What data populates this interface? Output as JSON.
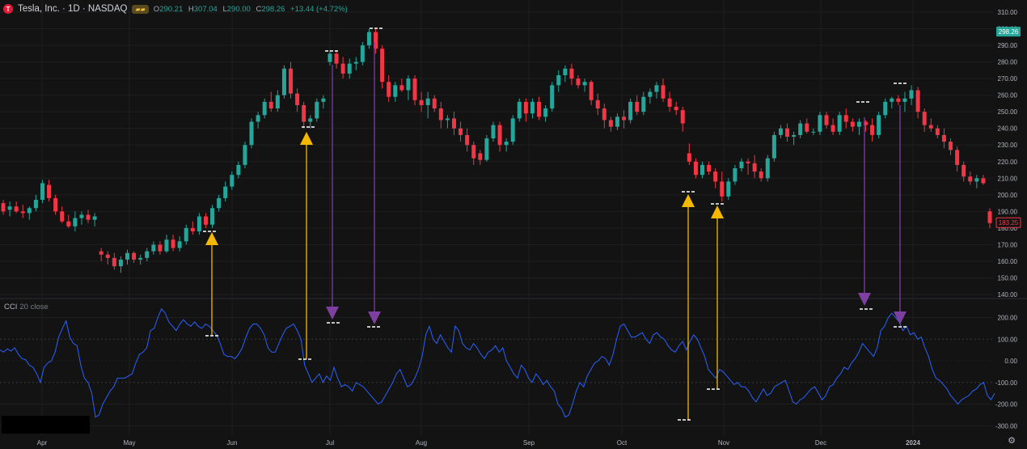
{
  "header": {
    "symbol": "Tesla, Inc. · 1D · NASDAQ",
    "logo_letter": "T",
    "badge": "▰▰",
    "open_key": "O",
    "open": "290.21",
    "high_key": "H",
    "high": "307.04",
    "low_key": "L",
    "low": "290.00",
    "close_key": "C",
    "close": "298.26",
    "change": "+13.44 (+4.72%)"
  },
  "indicator": {
    "name": "CCI",
    "params": "20 close"
  },
  "colors": {
    "background": "#131313",
    "up": "#26a69a",
    "down": "#f23645",
    "cci": "#2962ff",
    "buy_arrow": "#f5b800",
    "sell_arrow": "#7e3fa0",
    "marker": "#ffffff",
    "grid": "#1f1f1f",
    "label_green": "#26a69a",
    "label_red": "#f23645"
  },
  "chart_data": [
    {
      "type": "candlestick",
      "title": "Tesla, Inc. · 1D · NASDAQ",
      "x_tick_labels": [
        "Apr",
        "May",
        "Jun",
        "Jul",
        "Aug",
        "Sep",
        "Oct",
        "Nov",
        "Dec",
        "2024"
      ],
      "y_tick_labels": [
        "310.00",
        "300.00",
        "290.00",
        "280.00",
        "270.00",
        "260.00",
        "250.00",
        "240.00",
        "230.00",
        "220.00",
        "210.00",
        "200.00",
        "190.00",
        "180.00",
        "170.00",
        "160.00",
        "150.00",
        "140.00"
      ],
      "ylim": [
        135,
        313
      ],
      "price_labels": [
        {
          "text": "298.26",
          "value": 298.26,
          "color": "#26a69a"
        },
        {
          "text": "183.25",
          "value": 183.25,
          "color": "#f23645"
        }
      ],
      "candles": [
        [
          195,
          197,
          188,
          190
        ],
        [
          191,
          196,
          187,
          193
        ],
        [
          193,
          196,
          189,
          190
        ],
        [
          190,
          194,
          186,
          189
        ],
        [
          189,
          193,
          185,
          192
        ],
        [
          192,
          200,
          190,
          197
        ],
        [
          197,
          209,
          195,
          207
        ],
        [
          206,
          209,
          196,
          198
        ],
        [
          198,
          200,
          188,
          190
        ],
        [
          190,
          193,
          183,
          184
        ],
        [
          184,
          188,
          180,
          181
        ],
        [
          181,
          190,
          178,
          186
        ],
        [
          186,
          190,
          182,
          188
        ],
        [
          188,
          191,
          183,
          185
        ],
        [
          185,
          189,
          181,
          187
        ],
        [
          166,
          168,
          160,
          164
        ],
        [
          164,
          166,
          158,
          162
        ],
        [
          162,
          165,
          155,
          157
        ],
        [
          157,
          163,
          153,
          161
        ],
        [
          161,
          167,
          158,
          165
        ],
        [
          165,
          166,
          159,
          161
        ],
        [
          161,
          164,
          158,
          162
        ],
        [
          162,
          168,
          160,
          166
        ],
        [
          166,
          172,
          164,
          170
        ],
        [
          170,
          172,
          164,
          166
        ],
        [
          166,
          176,
          165,
          173
        ],
        [
          173,
          176,
          166,
          168
        ],
        [
          168,
          175,
          166,
          172
        ],
        [
          172,
          182,
          170,
          180
        ],
        [
          180,
          184,
          176,
          178
        ],
        [
          178,
          189,
          176,
          187
        ],
        [
          187,
          189,
          180,
          182
        ],
        [
          182,
          194,
          180,
          192
        ],
        [
          192,
          200,
          190,
          198
        ],
        [
          198,
          208,
          196,
          205
        ],
        [
          205,
          214,
          203,
          212
        ],
        [
          212,
          220,
          210,
          218
        ],
        [
          218,
          232,
          216,
          230
        ],
        [
          230,
          246,
          228,
          244
        ],
        [
          244,
          250,
          240,
          248
        ],
        [
          248,
          258,
          246,
          256
        ],
        [
          256,
          262,
          250,
          252
        ],
        [
          252,
          263,
          250,
          260
        ],
        [
          260,
          278,
          258,
          276
        ],
        [
          276,
          280,
          258,
          261
        ],
        [
          261,
          264,
          250,
          254
        ],
        [
          254,
          256,
          240,
          244
        ],
        [
          244,
          248,
          240,
          246
        ],
        [
          246,
          258,
          244,
          256
        ],
        [
          256,
          260,
          252,
          258
        ],
        [
          280,
          287,
          278,
          285
        ],
        [
          285,
          287,
          276,
          279
        ],
        [
          279,
          283,
          270,
          273
        ],
        [
          273,
          282,
          270,
          279
        ],
        [
          279,
          283,
          275,
          280
        ],
        [
          280,
          292,
          278,
          290
        ],
        [
          290,
          300,
          288,
          298
        ],
        [
          298,
          300,
          285,
          288
        ],
        [
          288,
          290,
          264,
          268
        ],
        [
          268,
          272,
          256,
          259
        ],
        [
          259,
          268,
          256,
          266
        ],
        [
          266,
          270,
          262,
          263
        ],
        [
          263,
          272,
          257,
          270
        ],
        [
          270,
          272,
          254,
          257
        ],
        [
          257,
          262,
          250,
          254
        ],
        [
          254,
          262,
          246,
          258
        ],
        [
          258,
          260,
          250,
          252
        ],
        [
          252,
          256,
          240,
          245
        ],
        [
          245,
          248,
          240,
          246
        ],
        [
          246,
          250,
          236,
          240
        ],
        [
          240,
          244,
          232,
          236
        ],
        [
          236,
          240,
          226,
          230
        ],
        [
          230,
          232,
          218,
          222
        ],
        [
          225,
          227,
          218,
          221
        ],
        [
          221,
          236,
          220,
          234
        ],
        [
          234,
          244,
          232,
          242
        ],
        [
          242,
          244,
          226,
          230
        ],
        [
          230,
          234,
          226,
          232
        ],
        [
          232,
          248,
          230,
          246
        ],
        [
          246,
          258,
          244,
          256
        ],
        [
          256,
          258,
          244,
          249
        ],
        [
          249,
          258,
          246,
          256
        ],
        [
          256,
          259,
          245,
          247
        ],
        [
          247,
          254,
          244,
          252
        ],
        [
          252,
          268,
          250,
          266
        ],
        [
          266,
          275,
          262,
          272
        ],
        [
          272,
          278,
          268,
          276
        ],
        [
          276,
          279,
          266,
          270
        ],
        [
          270,
          272,
          264,
          266
        ],
        [
          266,
          270,
          262,
          268
        ],
        [
          268,
          269,
          254,
          257
        ],
        [
          257,
          261,
          248,
          252
        ],
        [
          252,
          255,
          240,
          245
        ],
        [
          245,
          247,
          238,
          241
        ],
        [
          241,
          249,
          239,
          247
        ],
        [
          247,
          251,
          240,
          245
        ],
        [
          245,
          258,
          243,
          256
        ],
        [
          256,
          260,
          248,
          250
        ],
        [
          250,
          262,
          248,
          259
        ],
        [
          259,
          264,
          255,
          262
        ],
        [
          262,
          268,
          258,
          266
        ],
        [
          266,
          270,
          256,
          258
        ],
        [
          258,
          262,
          250,
          253
        ],
        [
          253,
          256,
          248,
          251
        ],
        [
          251,
          253,
          238,
          243
        ],
        [
          225,
          231,
          218,
          220
        ],
        [
          220,
          222,
          210,
          212
        ],
        [
          212,
          220,
          210,
          218
        ],
        [
          218,
          220,
          212,
          214
        ],
        [
          214,
          216,
          204,
          208
        ],
        [
          208,
          214,
          196,
          199
        ],
        [
          199,
          210,
          197,
          208
        ],
        [
          208,
          218,
          206,
          216
        ],
        [
          216,
          222,
          214,
          220
        ],
        [
          220,
          222,
          212,
          219
        ],
        [
          219,
          224,
          210,
          214
        ],
        [
          214,
          216,
          208,
          210
        ],
        [
          210,
          224,
          208,
          222
        ],
        [
          222,
          238,
          220,
          236
        ],
        [
          236,
          242,
          234,
          240
        ],
        [
          240,
          243,
          232,
          235
        ],
        [
          235,
          238,
          230,
          236
        ],
        [
          236,
          245,
          234,
          243
        ],
        [
          243,
          246,
          237,
          238
        ],
        [
          238,
          240,
          236,
          238
        ],
        [
          238,
          250,
          236,
          248
        ],
        [
          248,
          250,
          240,
          242
        ],
        [
          242,
          246,
          236,
          238
        ],
        [
          238,
          250,
          236,
          248
        ],
        [
          248,
          252,
          240,
          244
        ],
        [
          244,
          246,
          238,
          241
        ],
        [
          241,
          246,
          236,
          244
        ],
        [
          244,
          245,
          238,
          242
        ],
        [
          242,
          246,
          232,
          236
        ],
        [
          236,
          250,
          234,
          248
        ],
        [
          248,
          258,
          246,
          256
        ],
        [
          256,
          259,
          252,
          258
        ],
        [
          258,
          260,
          254,
          256
        ],
        [
          256,
          262,
          250,
          258
        ],
        [
          258,
          266,
          254,
          263
        ],
        [
          263,
          265,
          246,
          250
        ],
        [
          250,
          252,
          238,
          242
        ],
        [
          242,
          246,
          238,
          240
        ],
        [
          240,
          242,
          234,
          236
        ],
        [
          236,
          240,
          228,
          232
        ],
        [
          232,
          234,
          224,
          227
        ],
        [
          227,
          229,
          214,
          218
        ],
        [
          218,
          220,
          208,
          211
        ],
        [
          211,
          214,
          206,
          208
        ],
        [
          208,
          212,
          204,
          210
        ],
        [
          210,
          212,
          206,
          207
        ],
        [
          190,
          192,
          180,
          183
        ]
      ]
    },
    {
      "type": "line",
      "title": "CCI 20 close",
      "y_tick_labels": [
        "200.00",
        "100.00",
        "0.00",
        "-100.00",
        "-200.00",
        "-300.00"
      ],
      "ylim": [
        -340,
        250
      ],
      "values": [
        50,
        40,
        55,
        45,
        60,
        30,
        10,
        5,
        -20,
        -30,
        -60,
        -100,
        -30,
        -10,
        0,
        40,
        110,
        150,
        185,
        110,
        80,
        70,
        -20,
        -80,
        -100,
        -150,
        -260,
        -250,
        -200,
        -170,
        -140,
        -120,
        -80,
        -80,
        -80,
        -70,
        -60,
        -10,
        30,
        40,
        60,
        140,
        150,
        200,
        240,
        220,
        180,
        160,
        140,
        170,
        190,
        170,
        160,
        180,
        160,
        150,
        170,
        160,
        140,
        120,
        80,
        30,
        20,
        20,
        10,
        30,
        60,
        110,
        150,
        170,
        170,
        150,
        120,
        60,
        40,
        40,
        80,
        120,
        150,
        160,
        170,
        140,
        100,
        -20,
        -60,
        -100,
        -80,
        -60,
        -100,
        -70,
        -90,
        -30,
        -80,
        -120,
        -110,
        -120,
        -140,
        -100,
        -110,
        -120,
        -140,
        -160,
        -180,
        -200,
        -190,
        -160,
        -130,
        -100,
        -60,
        -40,
        -80,
        -120,
        -110,
        -80,
        -40,
        20,
        120,
        160,
        100,
        80,
        120,
        90,
        60,
        40,
        160,
        140,
        80,
        60,
        50,
        80,
        60,
        30,
        10,
        40,
        50,
        70,
        40,
        60,
        0,
        -30,
        -60,
        -80,
        -20,
        -40,
        -80,
        -100,
        -60,
        -80,
        -110,
        -90,
        -120,
        -140,
        -200,
        -220,
        -260,
        -250,
        -200,
        -140,
        -100,
        -120,
        -70,
        -40,
        -10,
        0,
        20,
        10,
        -20,
        30,
        100,
        160,
        170,
        140,
        110,
        110,
        120,
        130,
        100,
        80,
        120,
        130,
        110,
        100,
        70,
        50,
        40,
        70,
        90,
        50,
        90,
        120,
        100,
        60,
        20,
        -40,
        -60,
        -80,
        -40,
        -50,
        -70,
        -90,
        -110,
        -100,
        -120,
        -120,
        -140,
        -170,
        -190,
        -160,
        -130,
        -160,
        -150,
        -120,
        -110,
        -100,
        -90,
        -140,
        -190,
        -200,
        -180,
        -170,
        -150,
        -130,
        -120,
        -150,
        -180,
        -160,
        -120,
        -110,
        -80,
        -60,
        -30,
        -40,
        -10,
        10,
        40,
        80,
        60,
        40,
        20,
        60,
        140,
        160,
        200,
        220,
        200,
        180,
        140,
        160,
        120,
        130,
        100,
        110,
        60,
        20,
        -40,
        -80,
        -90,
        -110,
        -130,
        -160,
        -180,
        -200,
        -180,
        -170,
        -160,
        -140,
        -130,
        -110,
        -100,
        -160,
        -180,
        -150
      ]
    }
  ]
}
